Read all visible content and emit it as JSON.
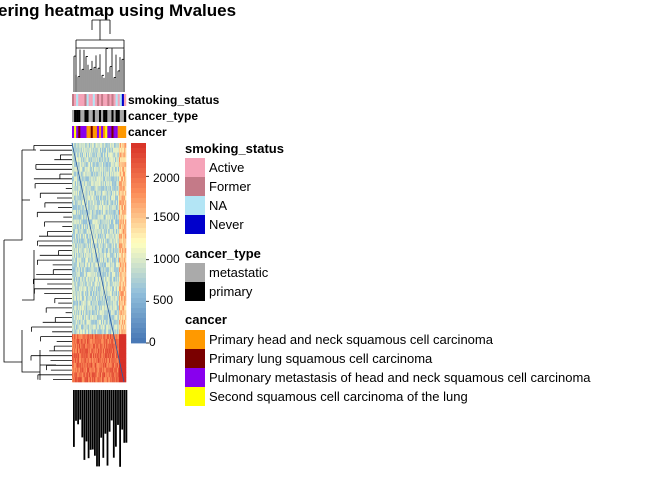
{
  "chart_data": {
    "type": "heatmap",
    "title": "ering heatmap using Mvalues",
    "colorbar": {
      "ticks": [
        0,
        500,
        1000,
        1500,
        2000
      ],
      "range": [
        0,
        2400
      ],
      "colors": [
        "#4575b4",
        "#91bfdb",
        "#ffffbf",
        "#fc8d59",
        "#d73027"
      ]
    },
    "annotation_rows": [
      "smoking_status",
      "cancer_type",
      "cancer"
    ],
    "legends": [
      {
        "title": "smoking_status",
        "items": [
          {
            "label": "Active",
            "color": "#f5a3b8"
          },
          {
            "label": "Former",
            "color": "#c47a88"
          },
          {
            "label": "NA",
            "color": "#b3e5f5"
          },
          {
            "label": "Never",
            "color": "#0000cc"
          }
        ]
      },
      {
        "title": "cancer_type",
        "items": [
          {
            "label": "metastatic",
            "color": "#aaaaaa"
          },
          {
            "label": "primary",
            "color": "#000000"
          }
        ]
      },
      {
        "title": "cancer",
        "items": [
          {
            "label": "Primary head and neck squamous cell carcinoma",
            "color": "#ff9900"
          },
          {
            "label": "Primary lung squamous cell carcinoma",
            "color": "#7a0000"
          },
          {
            "label": "Pulmonary metastasis of head and neck squamous cell carcinoma",
            "color": "#8800ee"
          },
          {
            "label": "Second squamous cell carcinoma of the lung",
            "color": "#ffff00"
          }
        ]
      }
    ],
    "heatmap_rows": 50,
    "heatmap_cols": 54,
    "row_bands": [
      {
        "from": 0,
        "to": 40,
        "level": 850
      },
      {
        "from": 40,
        "to": 50,
        "level": 2000
      }
    ]
  }
}
